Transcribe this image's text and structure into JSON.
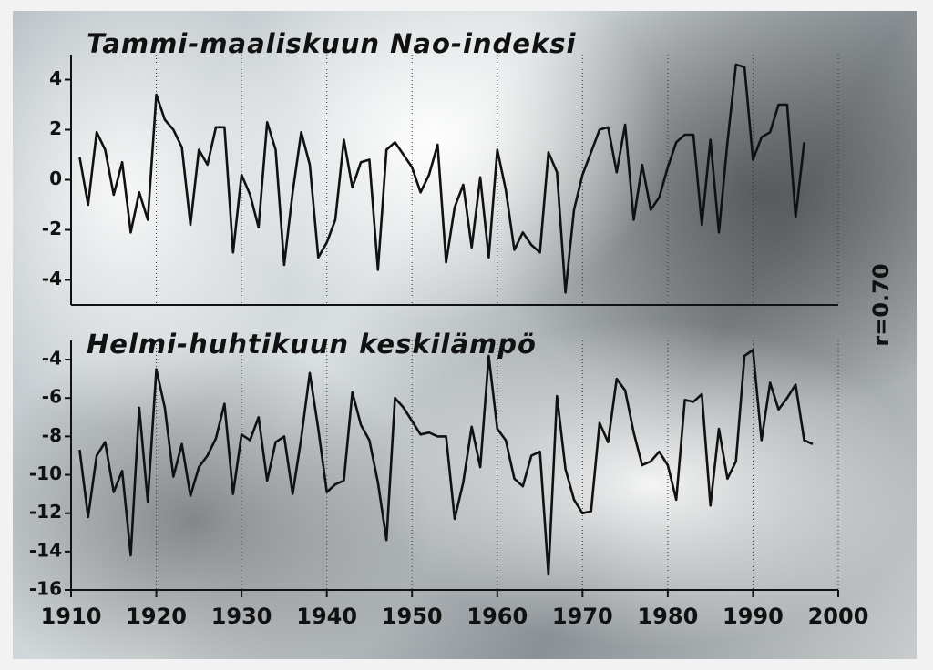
{
  "chart_data": [
    {
      "type": "line",
      "title": "Tammi-maaliskuun Nao-indeksi",
      "x": [
        1911,
        1912,
        1913,
        1914,
        1915,
        1916,
        1917,
        1918,
        1919,
        1920,
        1921,
        1922,
        1923,
        1924,
        1925,
        1926,
        1927,
        1928,
        1929,
        1930,
        1931,
        1932,
        1933,
        1934,
        1935,
        1936,
        1937,
        1938,
        1939,
        1940,
        1941,
        1942,
        1943,
        1944,
        1945,
        1946,
        1947,
        1948,
        1949,
        1950,
        1951,
        1952,
        1953,
        1954,
        1955,
        1956,
        1957,
        1958,
        1959,
        1960,
        1961,
        1962,
        1963,
        1964,
        1965,
        1966,
        1967,
        1968,
        1969,
        1970,
        1971,
        1972,
        1973,
        1974,
        1975,
        1976,
        1977,
        1978,
        1979,
        1980,
        1981,
        1982,
        1983,
        1984,
        1985,
        1986,
        1987,
        1988,
        1989,
        1990,
        1991,
        1992,
        1993,
        1994,
        1995,
        1996,
        1997
      ],
      "values": [
        0.9,
        -1.0,
        1.9,
        1.2,
        -0.6,
        0.7,
        -2.1,
        -0.5,
        -1.6,
        3.4,
        2.4,
        2.0,
        1.3,
        -1.8,
        1.2,
        0.6,
        2.1,
        2.1,
        -2.9,
        0.2,
        -0.6,
        -1.9,
        2.3,
        1.2,
        -3.4,
        -0.5,
        1.9,
        0.6,
        -3.1,
        -2.5,
        -1.6,
        1.6,
        -0.3,
        0.7,
        0.8,
        -3.6,
        1.2,
        1.5,
        1.0,
        0.5,
        -0.5,
        0.2,
        1.4,
        -3.3,
        -1.1,
        -0.2,
        -2.7,
        0.1,
        -3.1,
        1.2,
        -0.4,
        -2.8,
        -2.1,
        -2.6,
        -2.9,
        1.1,
        0.3,
        -4.5,
        -1.2,
        0.2,
        1.1,
        2.0,
        2.1,
        0.3,
        2.2,
        -1.6,
        0.6,
        -1.2,
        -0.7,
        0.5,
        1.5,
        1.8,
        1.8,
        -1.8,
        1.6,
        -2.1,
        1.5,
        4.6,
        4.5,
        0.8,
        1.7,
        1.9,
        3.0,
        3.0,
        -1.5,
        1.5,
        null
      ],
      "color": "#111111",
      "xlim": [
        1910,
        2000
      ],
      "ylim": [
        -5,
        5
      ],
      "yticks": [
        -4,
        -2,
        0,
        2,
        4
      ],
      "grid": true
    },
    {
      "type": "line",
      "title": "Helmi-huhtikuun keskilämpö",
      "annotation": "r=0.70",
      "x": [
        1911,
        1912,
        1913,
        1914,
        1915,
        1916,
        1917,
        1918,
        1919,
        1920,
        1921,
        1922,
        1923,
        1924,
        1925,
        1926,
        1927,
        1928,
        1929,
        1930,
        1931,
        1932,
        1933,
        1934,
        1935,
        1936,
        1937,
        1938,
        1939,
        1940,
        1941,
        1942,
        1943,
        1944,
        1945,
        1946,
        1947,
        1948,
        1949,
        1950,
        1951,
        1952,
        1953,
        1954,
        1955,
        1956,
        1957,
        1958,
        1959,
        1960,
        1961,
        1962,
        1963,
        1964,
        1965,
        1966,
        1967,
        1968,
        1969,
        1970,
        1971,
        1972,
        1973,
        1974,
        1975,
        1976,
        1977,
        1978,
        1979,
        1980,
        1981,
        1982,
        1983,
        1984,
        1985,
        1986,
        1987,
        1988,
        1989,
        1990,
        1991,
        1992,
        1993,
        1994,
        1995,
        1996,
        1997
      ],
      "values": [
        -8.7,
        -12.2,
        -9.0,
        -8.3,
        -10.9,
        -9.8,
        -14.2,
        -6.5,
        -11.4,
        -4.5,
        -6.5,
        -10.1,
        -8.4,
        -11.1,
        -9.6,
        -9.0,
        -8.1,
        -6.3,
        -11.0,
        -7.9,
        -8.2,
        -7.0,
        -10.3,
        -8.3,
        -8.0,
        -11.0,
        -8.1,
        -4.7,
        -7.6,
        -10.9,
        -10.5,
        -10.3,
        -5.7,
        -7.4,
        -8.2,
        -10.4,
        -13.4,
        -6.0,
        -6.5,
        -7.2,
        -7.9,
        -7.8,
        -8.0,
        -8.0,
        -12.3,
        -10.4,
        -7.5,
        -9.6,
        -3.8,
        -7.6,
        -8.2,
        -10.2,
        -10.6,
        -9.0,
        -8.8,
        -15.2,
        -5.9,
        -9.7,
        -11.3,
        -12.0,
        -11.9,
        -7.3,
        -8.3,
        -5.0,
        -5.6,
        -7.8,
        -9.5,
        -9.3,
        -8.8,
        -9.5,
        -11.3,
        -6.1,
        -6.2,
        -5.8,
        -11.6,
        -7.6,
        -10.2,
        -9.3,
        -3.8,
        -3.5,
        -8.2,
        -5.2,
        -6.6,
        -6.0,
        -5.3,
        -8.2,
        -8.4
      ],
      "color": "#111111",
      "xlim": [
        1910,
        2000
      ],
      "xticks": [
        1910,
        1920,
        1930,
        1940,
        1950,
        1960,
        1970,
        1980,
        1990,
        2000
      ],
      "ylim": [
        -16,
        -3
      ],
      "yticks": [
        -16,
        -14,
        -12,
        -10,
        -8,
        -6,
        -4
      ],
      "grid": true
    }
  ]
}
